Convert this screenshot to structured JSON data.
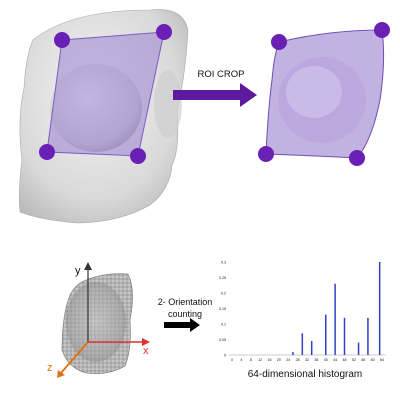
{
  "step1": {
    "label": "ROI CROP"
  },
  "step2": {
    "label_line1": "2- Orientation",
    "label_line2": "counting"
  },
  "axes": {
    "x": "x",
    "y": "y",
    "z": "z"
  },
  "histogram": {
    "caption": "64-dimensional histogram"
  },
  "colors": {
    "roi_fill": "#9a7fcf",
    "roi_marker": "#6a1fb5",
    "arrow_purple": "#5e1a9c",
    "arrow_black": "#000000",
    "bar_blue": "#3040c8",
    "axis_red": "#e03030",
    "axis_orange": "#e07010",
    "axis_dark": "#333333"
  },
  "chart_data": {
    "type": "bar",
    "title": "",
    "xlabel": "",
    "ylabel": "",
    "ylim": [
      0,
      0.3
    ],
    "y_ticks": [
      "0",
      "0.05",
      "0.1",
      "0.15",
      "0.2",
      "0.25",
      "0.3"
    ],
    "x_ticks": [
      "0",
      "4",
      "8",
      "12",
      "16",
      "20",
      "24",
      "28",
      "32",
      "36",
      "40",
      "44",
      "48",
      "52",
      "56",
      "60",
      "64"
    ],
    "x": [
      26,
      30,
      34,
      40,
      44,
      48,
      54,
      58,
      63
    ],
    "values": [
      0.01,
      0.07,
      0.045,
      0.13,
      0.23,
      0.12,
      0.04,
      0.12,
      0.3
    ]
  }
}
